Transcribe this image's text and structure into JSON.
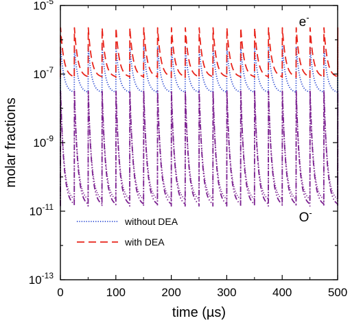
{
  "chart_data": {
    "type": "line",
    "xlabel": "time (µs)",
    "ylabel": "molar fractions",
    "xlim": [
      0,
      500
    ],
    "ylim_log10": [
      -13,
      -5
    ],
    "y_scale": "log",
    "grid": false,
    "x_ticks": [
      0,
      100,
      200,
      300,
      400,
      500
    ],
    "x_tick_labels": [
      "0",
      "100",
      "200",
      "300",
      "400",
      "500"
    ],
    "y_ticks_log10": [
      -13,
      -11,
      -9,
      -7,
      -5
    ],
    "y_tick_labels": [
      {
        "base": "10",
        "exp": "-13"
      },
      {
        "base": "10",
        "exp": "-11"
      },
      {
        "base": "10",
        "exp": "-9"
      },
      {
        "base": "10",
        "exp": "-7"
      },
      {
        "base": "10",
        "exp": "-5"
      }
    ],
    "pulse_period_us": 25,
    "pulse_count": 20,
    "annotations": [
      {
        "base": "e",
        "sup": "-",
        "x": 455,
        "y_log10": -5.6
      },
      {
        "base": "O",
        "sup": "-",
        "x": 455,
        "y_log10": -11.3
      }
    ],
    "legend": {
      "placement": "lower-left",
      "entries": [
        {
          "label": "without DEA",
          "series": "e_without_dea"
        },
        {
          "label": "with DEA",
          "series": "e_with_dea"
        }
      ]
    },
    "series": [
      {
        "id": "e_without_dea",
        "legend": "without DEA",
        "color": "#1f3fd0",
        "style": "dotted",
        "peak_log10": -6.2,
        "trough_log10": -7.55
      },
      {
        "id": "e_with_dea",
        "legend": "with DEA",
        "color": "#e8231a",
        "style": "dashed",
        "peak_log10": -5.65,
        "trough_log10": -7.1
      },
      {
        "id": "o_minus_without_dea",
        "color": "#7a1f8f",
        "style": "dotted",
        "peak_log10": -7.5,
        "trough_log10": -10.7
      },
      {
        "id": "o_minus_with_dea",
        "color": "#7a1f8f",
        "style": "dashdot",
        "peak_log10": -7.5,
        "trough_log10": -10.85
      }
    ]
  }
}
